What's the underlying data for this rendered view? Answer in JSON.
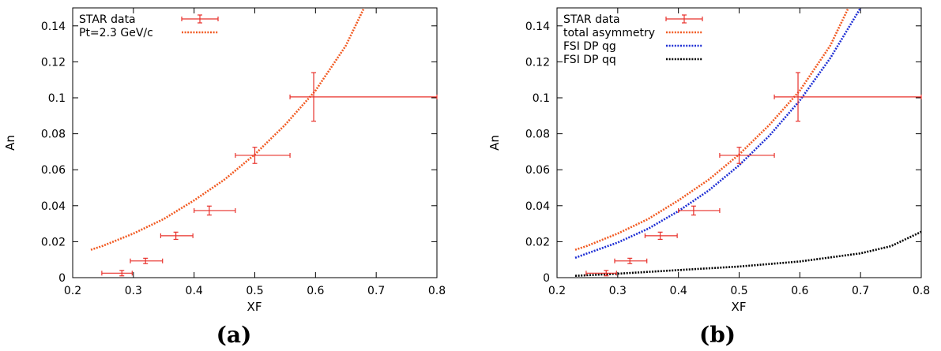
{
  "chart_data": [
    {
      "type": "scatter",
      "caption": "(a)",
      "xlabel": "XF",
      "ylabel": "An",
      "xlim": [
        0.2,
        0.8
      ],
      "ylim": [
        0,
        0.15
      ],
      "xticks": [
        "0.2",
        "0.3",
        "0.4",
        "0.5",
        "0.6",
        "0.7",
        "0.8"
      ],
      "yticks": [
        "0",
        "0.02",
        "0.04",
        "0.06",
        "0.08",
        "0.1",
        "0.12",
        "0.14"
      ],
      "grid": false,
      "legend_position": "top-left",
      "points": {
        "name": "STAR data",
        "color": "#e8302a",
        "x": [
          0.281,
          0.32,
          0.37,
          0.425,
          0.5,
          0.597
        ],
        "xlo": [
          0.248,
          0.295,
          0.345,
          0.4,
          0.468,
          0.558
        ],
        "xhi": [
          0.298,
          0.348,
          0.398,
          0.468,
          0.558,
          0.8
        ],
        "y": [
          0.0025,
          0.0093,
          0.0233,
          0.0373,
          0.068,
          0.1005
        ],
        "yerr": [
          0.0015,
          0.0015,
          0.002,
          0.0025,
          0.0045,
          0.0135
        ]
      },
      "series": [
        {
          "name": "Pt=2.3 GeV/c",
          "color": "#f15a22",
          "style": "dotted",
          "x": [
            0.23,
            0.25,
            0.3,
            0.35,
            0.4,
            0.45,
            0.5,
            0.55,
            0.6,
            0.65,
            0.68
          ],
          "y": [
            0.0155,
            0.0177,
            0.0245,
            0.0326,
            0.043,
            0.0545,
            0.0685,
            0.085,
            0.104,
            0.129,
            0.15
          ]
        }
      ]
    },
    {
      "type": "scatter",
      "caption": "(b)",
      "xlabel": "XF",
      "ylabel": "An",
      "xlim": [
        0.2,
        0.8
      ],
      "ylim": [
        0,
        0.15
      ],
      "xticks": [
        "0.2",
        "0.3",
        "0.4",
        "0.5",
        "0.6",
        "0.7",
        "0.8"
      ],
      "yticks": [
        "0",
        "0.02",
        "0.04",
        "0.06",
        "0.08",
        "0.1",
        "0.12",
        "0.14"
      ],
      "grid": false,
      "legend_position": "top-left",
      "points": {
        "name": "STAR data",
        "color": "#e8302a",
        "x": [
          0.281,
          0.32,
          0.37,
          0.425,
          0.5,
          0.597
        ],
        "xlo": [
          0.248,
          0.295,
          0.345,
          0.4,
          0.468,
          0.558
        ],
        "xhi": [
          0.298,
          0.348,
          0.398,
          0.468,
          0.558,
          0.8
        ],
        "y": [
          0.0025,
          0.0093,
          0.0233,
          0.0373,
          0.068,
          0.1005
        ],
        "yerr": [
          0.0015,
          0.0015,
          0.002,
          0.0025,
          0.0045,
          0.0135
        ]
      },
      "series": [
        {
          "name": "total asymmetry",
          "color": "#f15a22",
          "style": "dotted",
          "x": [
            0.23,
            0.25,
            0.3,
            0.35,
            0.4,
            0.45,
            0.5,
            0.55,
            0.6,
            0.65,
            0.68
          ],
          "y": [
            0.0155,
            0.0177,
            0.0245,
            0.0326,
            0.043,
            0.0545,
            0.0685,
            0.085,
            0.104,
            0.129,
            0.15
          ]
        },
        {
          "name": "FSI DP qg",
          "color": "#1f2fd4",
          "style": "dotted",
          "x": [
            0.23,
            0.25,
            0.3,
            0.35,
            0.4,
            0.45,
            0.5,
            0.55,
            0.6,
            0.65,
            0.7
          ],
          "y": [
            0.011,
            0.0135,
            0.0195,
            0.0272,
            0.037,
            0.0485,
            0.0625,
            0.079,
            0.0985,
            0.122,
            0.15
          ]
        },
        {
          "name": "FSI DP qq",
          "color": "#000000",
          "style": "dotted",
          "x": [
            0.23,
            0.3,
            0.4,
            0.5,
            0.6,
            0.7,
            0.75,
            0.8
          ],
          "y": [
            0.001,
            0.0022,
            0.0042,
            0.0062,
            0.009,
            0.0135,
            0.0175,
            0.0255
          ]
        }
      ]
    }
  ]
}
